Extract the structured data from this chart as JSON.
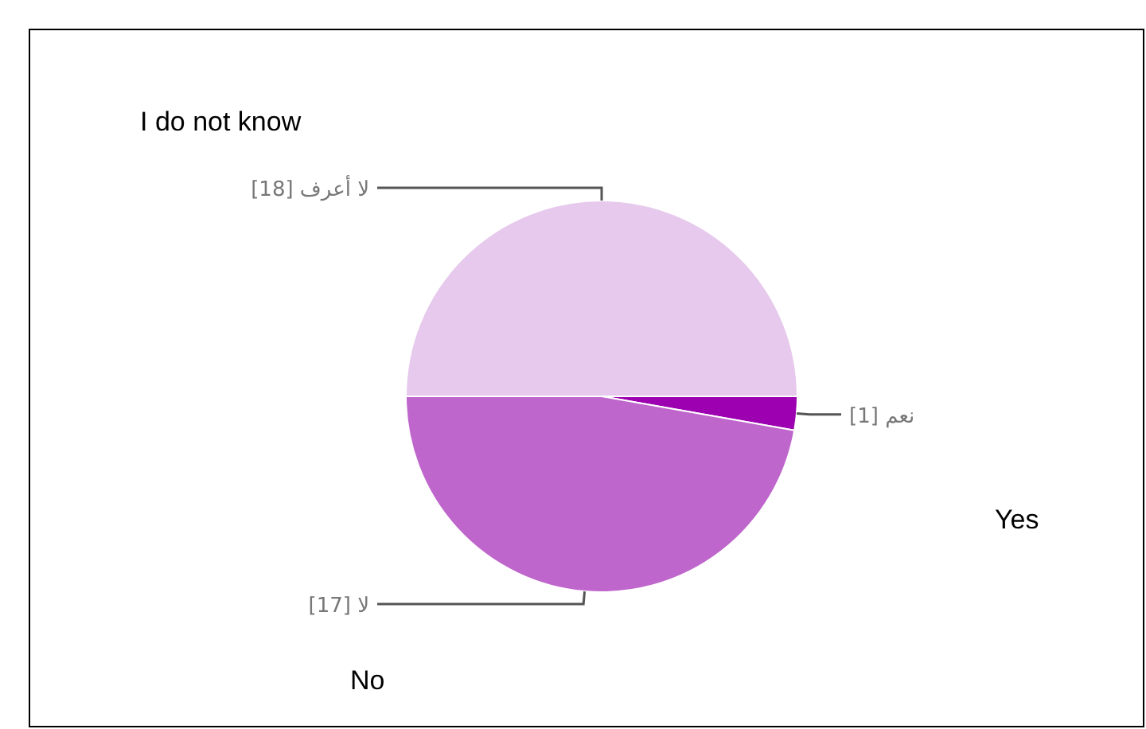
{
  "chart_data": {
    "type": "pie",
    "categories": [
      "لا أعرف [18]",
      "نعم [1]",
      "لا [17]"
    ],
    "values": [
      18,
      1,
      17
    ],
    "colors": [
      "#e6c9ec",
      "#9c00b0",
      "#bf66cc"
    ],
    "annotations": [
      "I do not know",
      "Yes",
      "No"
    ]
  }
}
